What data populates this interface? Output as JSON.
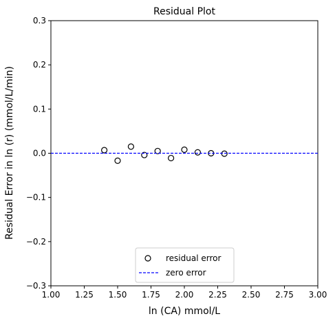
{
  "chart_data": {
    "type": "scatter",
    "title": "Residual Plot",
    "xlabel": "ln (CA) mmol/L",
    "ylabel": "Residual Error in ln (r) (mmol/L/min)",
    "xlim": [
      1.0,
      3.0
    ],
    "ylim": [
      -0.3,
      0.3
    ],
    "xticks": [
      1.0,
      1.25,
      1.5,
      1.75,
      2.0,
      2.25,
      2.5,
      2.75,
      3.0
    ],
    "xtick_labels": [
      "1.00",
      "1.25",
      "1.50",
      "1.75",
      "2.00",
      "2.25",
      "2.50",
      "2.75",
      "3.00"
    ],
    "yticks": [
      -0.3,
      -0.2,
      -0.1,
      0.0,
      0.1,
      0.2,
      0.3
    ],
    "ytick_labels": [
      "−0.3",
      "−0.2",
      "−0.1",
      "0.0",
      "0.1",
      "0.2",
      "0.3"
    ],
    "grid": false,
    "legend_position": "lower-center",
    "series": [
      {
        "name": "residual error",
        "kind": "scatter",
        "marker": "open-circle",
        "color": "#000000",
        "x": [
          1.4,
          1.5,
          1.6,
          1.7,
          1.8,
          1.9,
          2.0,
          2.1,
          2.2,
          2.3
        ],
        "y": [
          0.007,
          -0.017,
          0.015,
          -0.004,
          0.005,
          -0.011,
          0.008,
          0.002,
          0.0,
          -0.001
        ]
      },
      {
        "name": "zero error",
        "kind": "hline",
        "style": "dashed",
        "color": "#0000ff",
        "y": 0.0
      }
    ]
  }
}
